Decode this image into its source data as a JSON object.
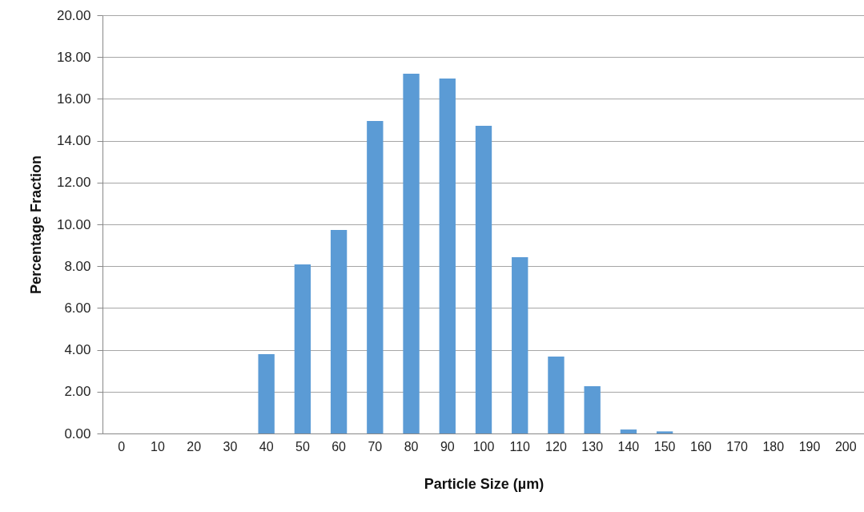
{
  "chart_data": {
    "type": "bar",
    "xlabel": "Particle Size (µm)",
    "ylabel": "Percentage Fraction",
    "categories": [
      "0",
      "10",
      "20",
      "30",
      "40",
      "50",
      "60",
      "70",
      "80",
      "90",
      "100",
      "110",
      "120",
      "130",
      "140",
      "150",
      "160",
      "170",
      "180",
      "190",
      "200"
    ],
    "values": [
      0,
      0,
      0,
      0,
      3.79,
      8.08,
      9.73,
      14.94,
      17.2,
      16.97,
      14.71,
      8.43,
      3.68,
      2.26,
      0.19,
      0.1,
      0,
      0,
      0,
      0,
      0
    ],
    "color": "#5b9bd5",
    "ylim": [
      0,
      20
    ],
    "yticks": [
      {
        "value": 0,
        "label": "0.00"
      },
      {
        "value": 2,
        "label": "2.00"
      },
      {
        "value": 4,
        "label": "4.00"
      },
      {
        "value": 6,
        "label": "6.00"
      },
      {
        "value": 8,
        "label": "8.00"
      },
      {
        "value": 10,
        "label": "10.00"
      },
      {
        "value": 12,
        "label": "12.00"
      },
      {
        "value": 14,
        "label": "14.00"
      },
      {
        "value": 16,
        "label": "16.00"
      },
      {
        "value": 18,
        "label": "18.00"
      },
      {
        "value": 20,
        "label": "20.00"
      }
    ],
    "grid": "y"
  }
}
